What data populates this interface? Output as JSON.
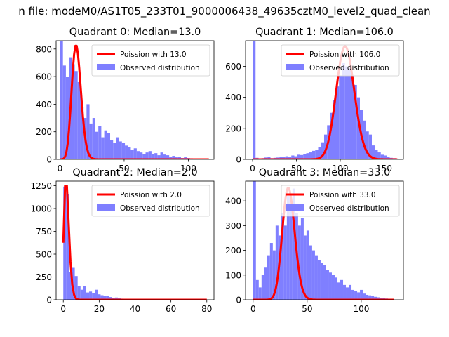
{
  "suptitle": "n file: modeM0/AS1T05_233T01_9000006438_49635cztM0_level2_quad_clean",
  "colors": {
    "fit_line": "#ff0000",
    "hist": "#7f7fff"
  },
  "legend_labels": {
    "observed": "Observed distribution"
  },
  "legend_placement": "top-right",
  "chart_data": [
    {
      "type": "bar",
      "title": "Quadrant 0: Median=13.0",
      "xlim": [
        -3,
        120
      ],
      "ylim": [
        0,
        860
      ],
      "xticks": [
        0,
        50,
        100
      ],
      "yticks": [
        0,
        200,
        400,
        600,
        800
      ],
      "bin_width": 2.3,
      "hist_bins": [
        0,
        2.3,
        4.6,
        6.9,
        9.2,
        11.5,
        13.8,
        16.1,
        18.4,
        20.7,
        23,
        25.3,
        27.6,
        29.9,
        32.2,
        34.5,
        36.8,
        39.1,
        41.4,
        43.7,
        46,
        48.3,
        50.6,
        52.9,
        55.2,
        57.5,
        59.8,
        62.1,
        64.4,
        66.7,
        69,
        71.3,
        73.6,
        75.9,
        78.2,
        80.5,
        82.8,
        85.1,
        87.4,
        89.7,
        92,
        94.3,
        96.6,
        98.9,
        101.2,
        103.5,
        105.8,
        108.1,
        110.4,
        112.7
      ],
      "hist_values": [
        860,
        680,
        600,
        740,
        690,
        640,
        560,
        380,
        300,
        400,
        260,
        300,
        200,
        240,
        160,
        210,
        190,
        140,
        120,
        160,
        130,
        120,
        100,
        90,
        70,
        80,
        60,
        50,
        40,
        50,
        60,
        40,
        45,
        30,
        50,
        35,
        30,
        20,
        25,
        15,
        20,
        10,
        15,
        10,
        8,
        6,
        5,
        4,
        3,
        2
      ],
      "series": [
        {
          "name": "Poission with 13.0",
          "lambda": 13.0,
          "scale": 823,
          "x_range": [
            0,
            116
          ]
        },
        {
          "name": "Observed distribution"
        }
      ]
    },
    {
      "type": "bar",
      "title": "Quadrant 1: Median=106.0",
      "xlim": [
        -8,
        172
      ],
      "ylim": [
        0,
        765
      ],
      "xticks": [
        0,
        50,
        100,
        150
      ],
      "yticks": [
        0,
        200,
        400,
        600
      ],
      "bin_width": 3.4,
      "hist_bins": [
        0,
        3.4,
        6.8,
        10.2,
        13.6,
        17,
        20.4,
        23.8,
        27.2,
        30.6,
        34,
        37.4,
        40.8,
        44.2,
        47.6,
        51,
        54.4,
        57.8,
        61.2,
        64.6,
        68,
        71.4,
        74.8,
        78.2,
        81.6,
        85,
        88.4,
        91.8,
        95.2,
        98.6,
        102,
        105.4,
        108.8,
        112.2,
        115.6,
        119,
        122.4,
        125.8,
        129.2,
        132.6,
        136,
        139.4,
        142.8,
        146.2,
        149.6,
        153,
        156.4,
        159.8,
        163.2
      ],
      "hist_values": [
        765,
        10,
        5,
        8,
        12,
        15,
        8,
        10,
        12,
        18,
        14,
        20,
        15,
        25,
        20,
        30,
        28,
        35,
        40,
        45,
        55,
        60,
        80,
        110,
        160,
        220,
        300,
        380,
        470,
        540,
        620,
        600,
        590,
        540,
        480,
        400,
        320,
        250,
        180,
        160,
        90,
        60,
        45,
        30,
        25,
        15,
        10,
        8,
        5
      ],
      "series": [
        {
          "name": "Poission with 106.0",
          "lambda": 106.0,
          "scale": 729,
          "x_range": [
            0,
            165
          ]
        },
        {
          "name": "Observed distribution"
        }
      ]
    },
    {
      "type": "bar",
      "title": "Quadrant 2: Median=2.0",
      "xlim": [
        -4,
        84
      ],
      "ylim": [
        0,
        1300
      ],
      "xticks": [
        0,
        20,
        40,
        60,
        80
      ],
      "yticks": [
        0,
        250,
        500,
        750,
        1000,
        1250
      ],
      "bin_width": 1.6,
      "hist_bins": [
        0,
        1.6,
        3.2,
        4.8,
        6.4,
        8,
        9.6,
        11.2,
        12.8,
        14.4,
        16,
        17.6,
        19.2,
        20.8,
        22.4,
        24,
        25.6,
        27.2,
        28.8,
        30.4,
        32,
        33.6,
        35.2,
        36.8,
        38.4,
        40,
        41.6,
        43.2,
        44.8,
        46.4,
        48,
        49.6,
        51.2,
        52.8,
        54.4,
        56,
        57.6,
        59.2,
        60.8,
        62.4,
        64,
        65.6,
        67.2,
        68.8,
        70.4,
        72,
        73.6,
        75.2,
        76.8,
        78.4
      ],
      "hist_values": [
        1240,
        1160,
        300,
        350,
        260,
        150,
        110,
        150,
        80,
        90,
        70,
        110,
        60,
        50,
        40,
        40,
        30,
        20,
        25,
        15,
        12,
        10,
        8,
        6,
        5,
        4,
        3,
        3,
        2,
        2,
        1,
        1,
        1,
        1,
        0,
        0,
        0,
        0,
        0,
        0,
        0,
        0,
        0,
        0,
        0,
        0,
        0,
        0,
        0,
        0
      ],
      "series": [
        {
          "name": "Poission with 2.0",
          "lambda": 2.0,
          "scale": 1250,
          "x_range": [
            0,
            80
          ]
        },
        {
          "name": "Observed distribution"
        }
      ]
    },
    {
      "type": "bar",
      "title": "Quadrant 3: Median=33.0",
      "xlim": [
        -7,
        139
      ],
      "ylim": [
        0,
        480
      ],
      "xticks": [
        0,
        50,
        100
      ],
      "yticks": [
        0,
        100,
        200,
        300,
        400
      ],
      "bin_width": 2.6,
      "hist_bins": [
        0,
        2.6,
        5.2,
        7.8,
        10.4,
        13,
        15.6,
        18.2,
        20.8,
        23.4,
        26,
        28.6,
        31.2,
        33.8,
        36.4,
        39,
        41.6,
        44.2,
        46.8,
        49.4,
        52,
        54.6,
        57.2,
        59.8,
        62.4,
        65,
        67.6,
        70.2,
        72.8,
        75.4,
        78,
        80.6,
        83.2,
        85.8,
        88.4,
        91,
        93.6,
        96.2,
        98.8,
        101.4,
        104,
        106.6,
        109.2,
        111.8,
        114.4,
        117,
        119.6,
        122.2,
        124.8,
        127.4
      ],
      "hist_values": [
        480,
        80,
        50,
        100,
        130,
        180,
        230,
        200,
        300,
        260,
        350,
        300,
        420,
        380,
        450,
        350,
        300,
        330,
        260,
        280,
        220,
        200,
        180,
        160,
        150,
        140,
        120,
        110,
        100,
        90,
        70,
        80,
        60,
        50,
        60,
        40,
        35,
        30,
        40,
        25,
        20,
        18,
        15,
        12,
        10,
        8,
        6,
        5,
        4,
        3
      ],
      "series": [
        {
          "name": "Poission with 33.0",
          "lambda": 33.0,
          "scale": 452,
          "x_range": [
            0,
            130
          ]
        },
        {
          "name": "Observed distribution"
        }
      ]
    }
  ]
}
